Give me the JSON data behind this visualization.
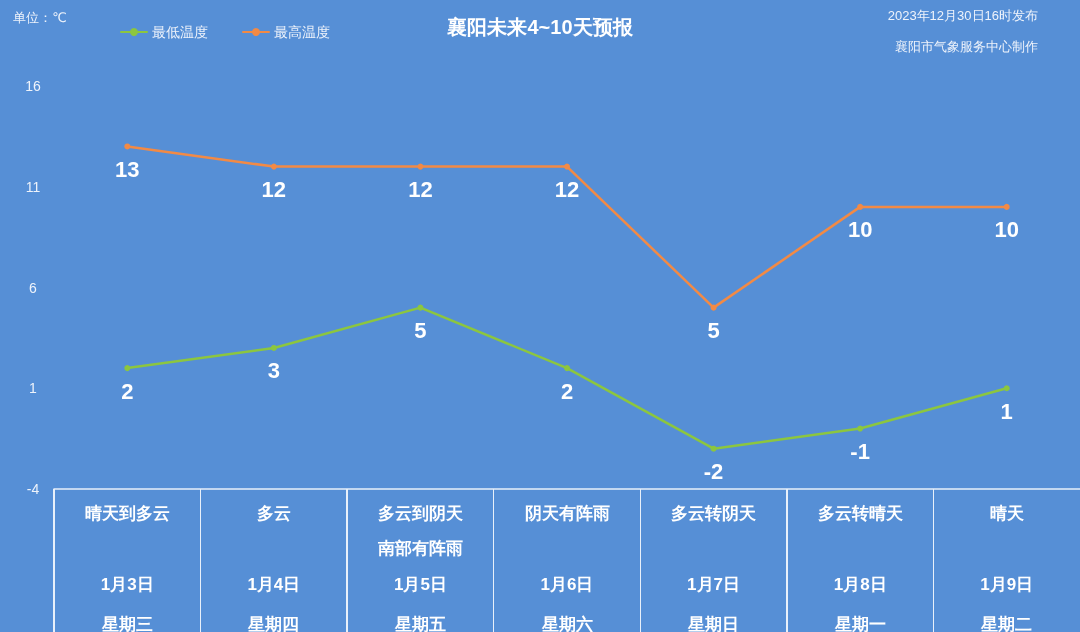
{
  "chart_data": {
    "type": "line",
    "title": "襄阳未来4~10天预报",
    "ylabel": "单位：℃",
    "annotations": [
      "2023年12月30日16时发布",
      "襄阳市气象服务中心制作",
      "晴天到多云",
      "星期三",
      "多云",
      "星期四",
      "多云到阴天南部有阵雨",
      "星期五",
      "阴天有阵雨",
      "星期六",
      "多云转阴天",
      "星期日",
      "多云转晴天",
      "星期一",
      "晴天",
      "星期二"
    ],
    "categories": [
      "1月3日",
      "1月4日",
      "1月5日",
      "1月6日",
      "1月7日",
      "1月8日",
      "1月9日"
    ],
    "series": [
      {
        "name": "最低温度",
        "color": "#8cc63f",
        "values": [
          2,
          3,
          5,
          2,
          -2,
          -1,
          1
        ]
      },
      {
        "name": "最高温度",
        "color": "#f28a45",
        "values": [
          13,
          12,
          12,
          12,
          5,
          10,
          10
        ]
      }
    ],
    "ylim": [
      -4,
      16
    ],
    "yticks": [
      -4,
      1,
      6,
      11,
      16
    ],
    "grid": false,
    "legend": "top left",
    "marker": "circle",
    "line_style": "solid",
    "data_labels": true
  }
}
